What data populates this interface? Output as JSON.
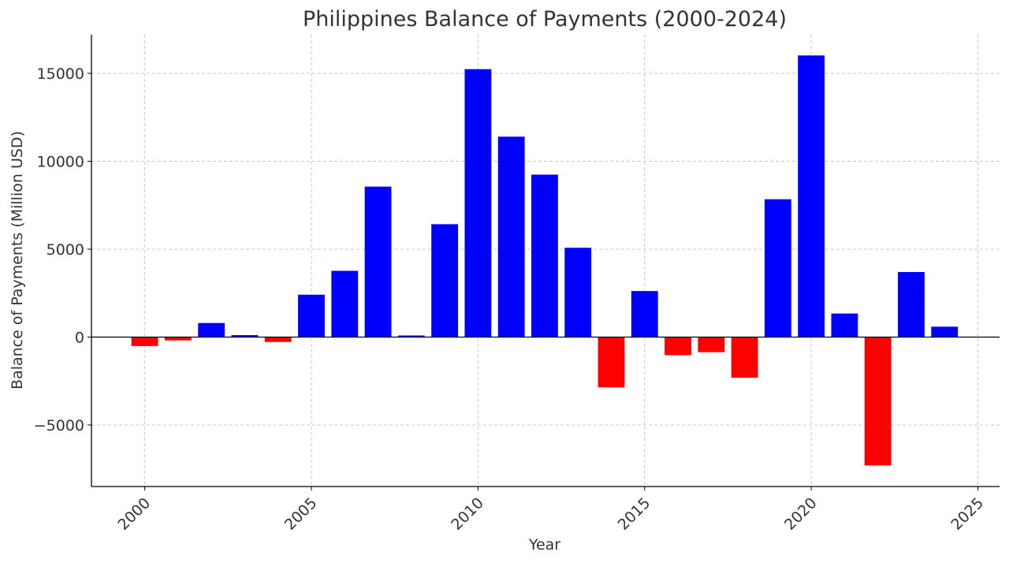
{
  "chart_data": {
    "type": "bar",
    "title": "Philippines Balance of Payments (2000-2024)",
    "xlabel": "Year",
    "ylabel": "Balance of Payments (Million USD)",
    "xlim": [
      1998.4,
      2025.65
    ],
    "ylim": [
      -8500,
      17200
    ],
    "x_ticks": [
      2000,
      2005,
      2010,
      2015,
      2020,
      2025
    ],
    "y_ticks": [
      -5000,
      0,
      5000,
      10000,
      15000
    ],
    "y_tick_labels": [
      "−5000",
      "0",
      "5000",
      "10000",
      "15000"
    ],
    "grid": true,
    "positive_color": "#0000ff",
    "negative_color": "#ff0000",
    "years": [
      2000,
      2001,
      2002,
      2003,
      2004,
      2005,
      2006,
      2007,
      2008,
      2009,
      2010,
      2011,
      2012,
      2013,
      2014,
      2015,
      2016,
      2017,
      2018,
      2019,
      2020,
      2021,
      2022,
      2023,
      2024
    ],
    "values": [
      -510,
      -190,
      800,
      110,
      -280,
      2410,
      3770,
      8560,
      90,
      6420,
      15240,
      11400,
      9240,
      5080,
      -2860,
      2620,
      -1030,
      -860,
      -2310,
      7840,
      16020,
      1340,
      -7300,
      3700,
      590
    ]
  }
}
